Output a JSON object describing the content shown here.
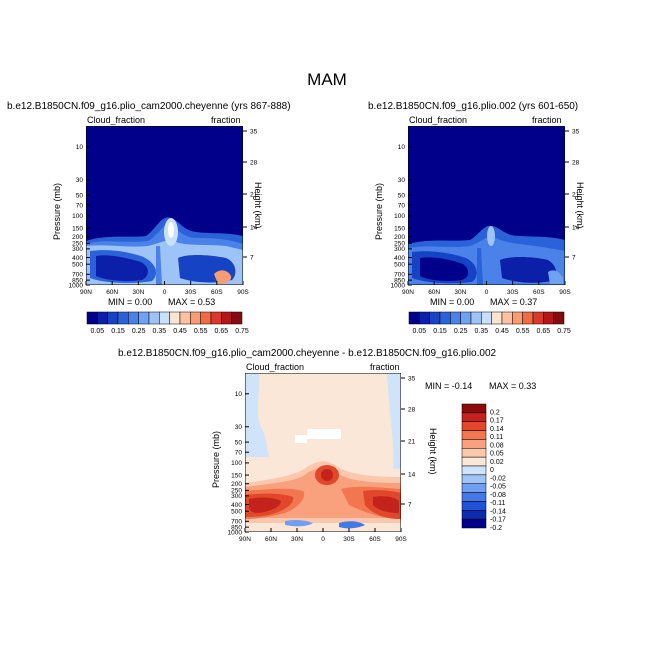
{
  "main_title": "MAM",
  "colors": {
    "seq": [
      "#00008b",
      "#0b1fa8",
      "#1642c4",
      "#2a62da",
      "#4a82ea",
      "#6fa3f2",
      "#9dc3f7",
      "#c9e0fb",
      "#fde4cf",
      "#fcc2a2",
      "#f99b73",
      "#ef6a45",
      "#d9382a",
      "#b4161a",
      "#870a10"
    ],
    "diff": [
      "#00008b",
      "#0b2ab0",
      "#1f52d4",
      "#4378e8",
      "#709ff2",
      "#9fc4f7",
      "#cfe3fb",
      "#fbe7d8",
      "#fbc8ad",
      "#f9a17d",
      "#f2764f",
      "#e0472b",
      "#c3231a",
      "#8b0b0b"
    ]
  },
  "chart_data": [
    {
      "type": "heatmap",
      "title": "b.e12.B1850CN.f09_g16.plio_cam2000.cheyenne (yrs 867-888)",
      "left_label": "Cloud_fraction",
      "right_label": "fraction",
      "ylabel": "Pressure (mb)",
      "ylabel_right": "Height (km)",
      "x_ticks": [
        "90N",
        "60N",
        "30N",
        "0",
        "30S",
        "60S",
        "90S"
      ],
      "y_ticks": [
        "10",
        "30",
        "50",
        "70",
        "100",
        "150",
        "200",
        "250",
        "300",
        "400",
        "500",
        "700",
        "850",
        "1000"
      ],
      "y_ticks_right": [
        "35",
        "28",
        "21",
        "14",
        "7"
      ],
      "min_label": "MIN =   0.00",
      "max_label": "MAX =   0.53",
      "min": 0.0,
      "max": 0.53,
      "colorbar": {
        "labels": [
          "0.05",
          "0.15",
          "0.25",
          "0.35",
          "0.45",
          "0.55",
          "0.65",
          "0.75"
        ]
      }
    },
    {
      "type": "heatmap",
      "title": "b.e12.B1850CN.f09_g16.plio.002 (yrs 601-650)",
      "left_label": "Cloud_fraction",
      "right_label": "fraction",
      "ylabel": "Pressure (mb)",
      "ylabel_right": "Height (km)",
      "x_ticks": [
        "90N",
        "60N",
        "30N",
        "0",
        "30S",
        "60S",
        "90S"
      ],
      "y_ticks": [
        "10",
        "30",
        "50",
        "70",
        "100",
        "150",
        "200",
        "250",
        "300",
        "400",
        "500",
        "700",
        "850",
        "1000"
      ],
      "y_ticks_right": [
        "35",
        "28",
        "21",
        "14",
        "7"
      ],
      "min_label": "MIN =   0.00",
      "max_label": "MAX =   0.37",
      "min": 0.0,
      "max": 0.37,
      "colorbar": {
        "labels": [
          "0.05",
          "0.15",
          "0.25",
          "0.35",
          "0.45",
          "0.55",
          "0.65",
          "0.75"
        ]
      }
    },
    {
      "type": "heatmap",
      "title": "b.e12.B1850CN.f09_g16.plio_cam2000.cheyenne - b.e12.B1850CN.f09_g16.plio.002",
      "left_label": "Cloud_fraction",
      "right_label": "fraction",
      "ylabel": "Pressure (mb)",
      "ylabel_right": "Height (km)",
      "x_ticks": [
        "90N",
        "60N",
        "30N",
        "0",
        "30S",
        "60S",
        "90S"
      ],
      "y_ticks": [
        "10",
        "30",
        "50",
        "70",
        "100",
        "150",
        "200",
        "250",
        "300",
        "400",
        "500",
        "700",
        "850",
        "1000"
      ],
      "y_ticks_right": [
        "35",
        "28",
        "21",
        "14",
        "7"
      ],
      "min_label": "MIN =  -0.14",
      "max_label": "MAX =   0.33",
      "min": -0.14,
      "max": 0.33,
      "colorbar": {
        "labels": [
          "0.2",
          "0.17",
          "0.14",
          "0.11",
          "0.08",
          "0.05",
          "0.02",
          "0",
          "-0.02",
          "-0.05",
          "-0.08",
          "-0.11",
          "-0.14",
          "-0.17",
          "-0.2"
        ]
      }
    }
  ]
}
